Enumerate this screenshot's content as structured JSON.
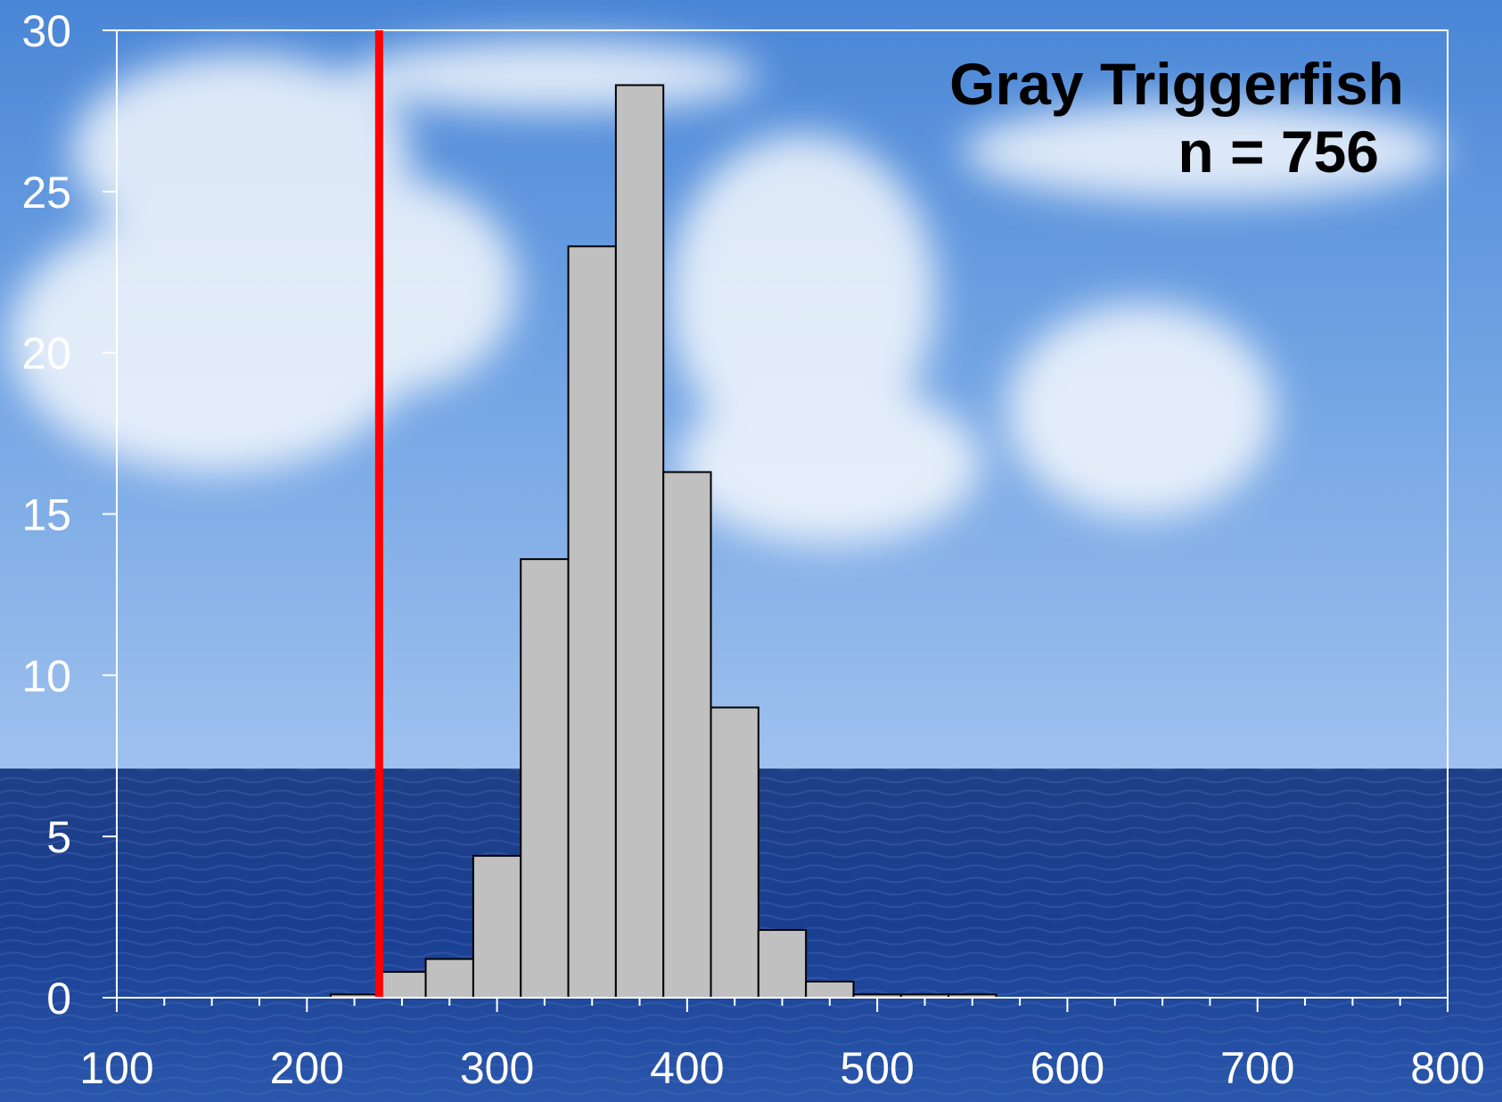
{
  "chart_data": {
    "type": "bar",
    "title": "",
    "xlabel": "",
    "ylabel": "",
    "annotations": [
      "Gray Triggerfish",
      "n = 756"
    ],
    "xlim": [
      100,
      800
    ],
    "ylim": [
      0,
      30
    ],
    "x_ticks": [
      "100",
      "200",
      "300",
      "400",
      "500",
      "600",
      "700",
      "800"
    ],
    "y_ticks": [
      "0",
      "5",
      "10",
      "15",
      "20",
      "25",
      "30"
    ],
    "bins": [
      {
        "start": 212.5,
        "end": 237.5,
        "value": 0.1
      },
      {
        "start": 237.5,
        "end": 262.5,
        "value": 0.8
      },
      {
        "start": 262.5,
        "end": 287.5,
        "value": 1.2
      },
      {
        "start": 287.5,
        "end": 312.5,
        "value": 4.4
      },
      {
        "start": 312.5,
        "end": 337.5,
        "value": 13.6
      },
      {
        "start": 337.5,
        "end": 362.5,
        "value": 23.3
      },
      {
        "start": 362.5,
        "end": 387.5,
        "value": 28.3
      },
      {
        "start": 387.5,
        "end": 412.5,
        "value": 16.3
      },
      {
        "start": 412.5,
        "end": 437.5,
        "value": 9.0
      },
      {
        "start": 437.5,
        "end": 462.5,
        "value": 2.1
      },
      {
        "start": 462.5,
        "end": 487.5,
        "value": 0.5
      },
      {
        "start": 487.5,
        "end": 512.5,
        "value": 0.1
      },
      {
        "start": 512.5,
        "end": 537.5,
        "value": 0.1
      },
      {
        "start": 537.5,
        "end": 562.5,
        "value": 0.1
      }
    ],
    "reference_line": {
      "x": 238,
      "color": "#ff0000"
    },
    "bar_color": "#c0c0c0",
    "grid": false,
    "background": "sky and ocean photograph"
  }
}
